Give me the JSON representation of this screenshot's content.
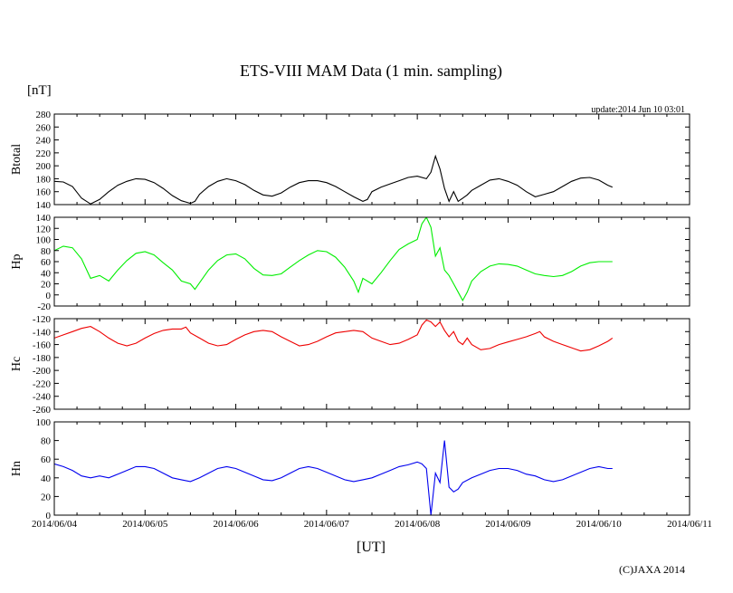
{
  "title": "ETS-VIII MAM Data (1 min. sampling)",
  "unit_label": "[nT]",
  "update_label": "update:2014 Jun 10 03:01",
  "xlabel": "[UT]",
  "copyright": "(C)JAXA 2014",
  "x_ticks": [
    "2014/06/04",
    "2014/06/05",
    "2014/06/06",
    "2014/06/07",
    "2014/06/08",
    "2014/06/09",
    "2014/06/10",
    "2014/06/11"
  ],
  "chart_data": [
    {
      "type": "line",
      "name": "Btotal",
      "ylabel": "Btotal",
      "color": "#000000",
      "ylim": [
        140,
        280
      ],
      "yticks": [
        140,
        160,
        180,
        200,
        220,
        240,
        260,
        280
      ],
      "xlim": [
        0,
        7
      ],
      "x_unit": "days since 2014/06/04 00:00 UT",
      "points": [
        [
          0,
          176
        ],
        [
          0.1,
          175
        ],
        [
          0.2,
          168
        ],
        [
          0.3,
          150
        ],
        [
          0.4,
          141
        ],
        [
          0.5,
          148
        ],
        [
          0.6,
          160
        ],
        [
          0.7,
          170
        ],
        [
          0.8,
          176
        ],
        [
          0.9,
          180
        ],
        [
          1.0,
          179
        ],
        [
          1.1,
          174
        ],
        [
          1.2,
          165
        ],
        [
          1.3,
          154
        ],
        [
          1.4,
          146
        ],
        [
          1.5,
          142
        ],
        [
          1.55,
          145
        ],
        [
          1.6,
          156
        ],
        [
          1.7,
          168
        ],
        [
          1.8,
          176
        ],
        [
          1.9,
          180
        ],
        [
          2.0,
          177
        ],
        [
          2.1,
          171
        ],
        [
          2.2,
          162
        ],
        [
          2.3,
          155
        ],
        [
          2.4,
          153
        ],
        [
          2.5,
          158
        ],
        [
          2.6,
          167
        ],
        [
          2.7,
          174
        ],
        [
          2.8,
          177
        ],
        [
          2.9,
          177
        ],
        [
          3.0,
          174
        ],
        [
          3.1,
          168
        ],
        [
          3.2,
          160
        ],
        [
          3.3,
          152
        ],
        [
          3.4,
          145
        ],
        [
          3.45,
          148
        ],
        [
          3.5,
          160
        ],
        [
          3.6,
          167
        ],
        [
          3.7,
          172
        ],
        [
          3.8,
          177
        ],
        [
          3.9,
          182
        ],
        [
          4.0,
          184
        ],
        [
          4.1,
          180
        ],
        [
          4.15,
          190
        ],
        [
          4.2,
          215
        ],
        [
          4.25,
          195
        ],
        [
          4.3,
          165
        ],
        [
          4.35,
          145
        ],
        [
          4.4,
          160
        ],
        [
          4.45,
          145
        ],
        [
          4.5,
          150
        ],
        [
          4.55,
          155
        ],
        [
          4.6,
          162
        ],
        [
          4.7,
          170
        ],
        [
          4.8,
          178
        ],
        [
          4.9,
          180
        ],
        [
          5.0,
          176
        ],
        [
          5.1,
          170
        ],
        [
          5.2,
          160
        ],
        [
          5.3,
          152
        ],
        [
          5.4,
          156
        ],
        [
          5.5,
          160
        ],
        [
          5.6,
          168
        ],
        [
          5.7,
          176
        ],
        [
          5.8,
          181
        ],
        [
          5.9,
          182
        ],
        [
          6.0,
          178
        ],
        [
          6.1,
          170
        ],
        [
          6.15,
          167
        ]
      ]
    },
    {
      "type": "line",
      "name": "Hp",
      "ylabel": "Hp",
      "color": "#00ee00",
      "ylim": [
        -20,
        140
      ],
      "yticks": [
        -20,
        0,
        20,
        40,
        60,
        80,
        100,
        120,
        140
      ],
      "xlim": [
        0,
        7
      ],
      "points": [
        [
          0,
          80
        ],
        [
          0.1,
          88
        ],
        [
          0.2,
          85
        ],
        [
          0.3,
          65
        ],
        [
          0.4,
          30
        ],
        [
          0.5,
          35
        ],
        [
          0.6,
          25
        ],
        [
          0.7,
          45
        ],
        [
          0.8,
          62
        ],
        [
          0.9,
          75
        ],
        [
          1.0,
          78
        ],
        [
          1.1,
          72
        ],
        [
          1.2,
          58
        ],
        [
          1.3,
          45
        ],
        [
          1.4,
          25
        ],
        [
          1.5,
          20
        ],
        [
          1.55,
          10
        ],
        [
          1.6,
          22
        ],
        [
          1.7,
          45
        ],
        [
          1.8,
          62
        ],
        [
          1.9,
          72
        ],
        [
          2.0,
          74
        ],
        [
          2.1,
          65
        ],
        [
          2.2,
          48
        ],
        [
          2.3,
          36
        ],
        [
          2.4,
          35
        ],
        [
          2.5,
          38
        ],
        [
          2.6,
          50
        ],
        [
          2.7,
          62
        ],
        [
          2.8,
          72
        ],
        [
          2.9,
          80
        ],
        [
          3.0,
          78
        ],
        [
          3.1,
          68
        ],
        [
          3.2,
          50
        ],
        [
          3.3,
          25
        ],
        [
          3.35,
          5
        ],
        [
          3.4,
          30
        ],
        [
          3.5,
          20
        ],
        [
          3.6,
          40
        ],
        [
          3.7,
          62
        ],
        [
          3.8,
          82
        ],
        [
          3.9,
          92
        ],
        [
          4.0,
          100
        ],
        [
          4.05,
          128
        ],
        [
          4.1,
          140
        ],
        [
          4.15,
          122
        ],
        [
          4.2,
          70
        ],
        [
          4.25,
          85
        ],
        [
          4.3,
          45
        ],
        [
          4.35,
          35
        ],
        [
          4.4,
          20
        ],
        [
          4.45,
          5
        ],
        [
          4.5,
          -10
        ],
        [
          4.55,
          5
        ],
        [
          4.6,
          25
        ],
        [
          4.7,
          42
        ],
        [
          4.8,
          52
        ],
        [
          4.9,
          56
        ],
        [
          5.0,
          55
        ],
        [
          5.1,
          52
        ],
        [
          5.2,
          45
        ],
        [
          5.3,
          38
        ],
        [
          5.4,
          35
        ],
        [
          5.5,
          33
        ],
        [
          5.6,
          35
        ],
        [
          5.7,
          42
        ],
        [
          5.8,
          52
        ],
        [
          5.9,
          58
        ],
        [
          6.0,
          60
        ],
        [
          6.1,
          60
        ],
        [
          6.15,
          60
        ]
      ]
    },
    {
      "type": "line",
      "name": "Hc",
      "ylabel": "Hc",
      "color": "#ee0000",
      "ylim": [
        -260,
        -120
      ],
      "yticks": [
        -260,
        -240,
        -220,
        -200,
        -180,
        -160,
        -140,
        -120
      ],
      "xlim": [
        0,
        7
      ],
      "points": [
        [
          0,
          -150
        ],
        [
          0.1,
          -145
        ],
        [
          0.2,
          -140
        ],
        [
          0.3,
          -135
        ],
        [
          0.4,
          -132
        ],
        [
          0.5,
          -140
        ],
        [
          0.6,
          -150
        ],
        [
          0.7,
          -158
        ],
        [
          0.8,
          -162
        ],
        [
          0.9,
          -158
        ],
        [
          1.0,
          -150
        ],
        [
          1.1,
          -143
        ],
        [
          1.2,
          -138
        ],
        [
          1.3,
          -136
        ],
        [
          1.4,
          -136
        ],
        [
          1.45,
          -133
        ],
        [
          1.5,
          -142
        ],
        [
          1.6,
          -150
        ],
        [
          1.7,
          -158
        ],
        [
          1.8,
          -162
        ],
        [
          1.9,
          -160
        ],
        [
          2.0,
          -152
        ],
        [
          2.1,
          -145
        ],
        [
          2.2,
          -140
        ],
        [
          2.3,
          -138
        ],
        [
          2.4,
          -140
        ],
        [
          2.5,
          -148
        ],
        [
          2.6,
          -155
        ],
        [
          2.7,
          -162
        ],
        [
          2.8,
          -160
        ],
        [
          2.9,
          -155
        ],
        [
          3.0,
          -148
        ],
        [
          3.1,
          -142
        ],
        [
          3.2,
          -140
        ],
        [
          3.3,
          -138
        ],
        [
          3.4,
          -140
        ],
        [
          3.5,
          -150
        ],
        [
          3.6,
          -155
        ],
        [
          3.7,
          -160
        ],
        [
          3.8,
          -158
        ],
        [
          3.9,
          -152
        ],
        [
          4.0,
          -145
        ],
        [
          4.05,
          -130
        ],
        [
          4.1,
          -122
        ],
        [
          4.15,
          -125
        ],
        [
          4.2,
          -132
        ],
        [
          4.25,
          -125
        ],
        [
          4.3,
          -138
        ],
        [
          4.35,
          -148
        ],
        [
          4.4,
          -140
        ],
        [
          4.45,
          -155
        ],
        [
          4.5,
          -160
        ],
        [
          4.55,
          -150
        ],
        [
          4.6,
          -160
        ],
        [
          4.7,
          -168
        ],
        [
          4.8,
          -166
        ],
        [
          4.9,
          -160
        ],
        [
          5.0,
          -156
        ],
        [
          5.1,
          -152
        ],
        [
          5.2,
          -148
        ],
        [
          5.3,
          -143
        ],
        [
          5.35,
          -140
        ],
        [
          5.4,
          -148
        ],
        [
          5.5,
          -155
        ],
        [
          5.6,
          -160
        ],
        [
          5.7,
          -165
        ],
        [
          5.8,
          -170
        ],
        [
          5.9,
          -168
        ],
        [
          6.0,
          -162
        ],
        [
          6.1,
          -155
        ],
        [
          6.15,
          -150
        ]
      ]
    },
    {
      "type": "line",
      "name": "Hn",
      "ylabel": "Hn",
      "color": "#0000ee",
      "ylim": [
        0,
        100
      ],
      "yticks": [
        0,
        20,
        40,
        60,
        80,
        100
      ],
      "xlim": [
        0,
        7
      ],
      "x_tick_labels_shown": true,
      "points": [
        [
          0,
          55
        ],
        [
          0.1,
          52
        ],
        [
          0.2,
          48
        ],
        [
          0.3,
          42
        ],
        [
          0.4,
          40
        ],
        [
          0.5,
          42
        ],
        [
          0.6,
          40
        ],
        [
          0.7,
          44
        ],
        [
          0.8,
          48
        ],
        [
          0.9,
          52
        ],
        [
          1.0,
          52
        ],
        [
          1.1,
          50
        ],
        [
          1.2,
          45
        ],
        [
          1.3,
          40
        ],
        [
          1.4,
          38
        ],
        [
          1.5,
          36
        ],
        [
          1.6,
          40
        ],
        [
          1.7,
          45
        ],
        [
          1.8,
          50
        ],
        [
          1.9,
          52
        ],
        [
          2.0,
          50
        ],
        [
          2.1,
          46
        ],
        [
          2.2,
          42
        ],
        [
          2.3,
          38
        ],
        [
          2.4,
          37
        ],
        [
          2.5,
          40
        ],
        [
          2.6,
          45
        ],
        [
          2.7,
          50
        ],
        [
          2.8,
          52
        ],
        [
          2.9,
          50
        ],
        [
          3.0,
          46
        ],
        [
          3.1,
          42
        ],
        [
          3.2,
          38
        ],
        [
          3.3,
          36
        ],
        [
          3.4,
          38
        ],
        [
          3.5,
          40
        ],
        [
          3.6,
          44
        ],
        [
          3.7,
          48
        ],
        [
          3.8,
          52
        ],
        [
          3.9,
          54
        ],
        [
          4.0,
          57
        ],
        [
          4.05,
          55
        ],
        [
          4.1,
          50
        ],
        [
          4.15,
          0
        ],
        [
          4.2,
          45
        ],
        [
          4.25,
          35
        ],
        [
          4.3,
          80
        ],
        [
          4.35,
          30
        ],
        [
          4.4,
          25
        ],
        [
          4.45,
          28
        ],
        [
          4.5,
          35
        ],
        [
          4.6,
          40
        ],
        [
          4.7,
          44
        ],
        [
          4.8,
          48
        ],
        [
          4.9,
          50
        ],
        [
          5.0,
          50
        ],
        [
          5.1,
          48
        ],
        [
          5.2,
          44
        ],
        [
          5.3,
          42
        ],
        [
          5.4,
          38
        ],
        [
          5.5,
          36
        ],
        [
          5.6,
          38
        ],
        [
          5.7,
          42
        ],
        [
          5.8,
          46
        ],
        [
          5.9,
          50
        ],
        [
          6.0,
          52
        ],
        [
          6.1,
          50
        ],
        [
          6.15,
          50
        ]
      ]
    }
  ]
}
